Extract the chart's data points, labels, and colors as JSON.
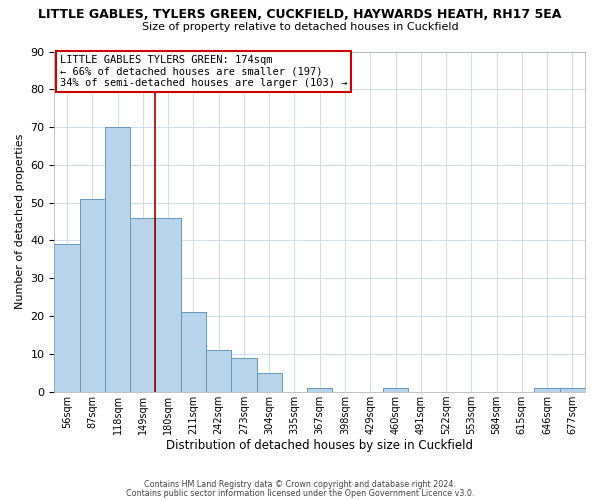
{
  "title": "LITTLE GABLES, TYLERS GREEN, CUCKFIELD, HAYWARDS HEATH, RH17 5EA",
  "subtitle": "Size of property relative to detached houses in Cuckfield",
  "xlabel": "Distribution of detached houses by size in Cuckfield",
  "ylabel": "Number of detached properties",
  "bar_color": "#b8d4ea",
  "bar_edge_color": "#6699bb",
  "background_color": "#ffffff",
  "grid_color": "#c5d8ea",
  "bin_labels": [
    "56sqm",
    "87sqm",
    "118sqm",
    "149sqm",
    "180sqm",
    "211sqm",
    "242sqm",
    "273sqm",
    "304sqm",
    "335sqm",
    "367sqm",
    "398sqm",
    "429sqm",
    "460sqm",
    "491sqm",
    "522sqm",
    "553sqm",
    "584sqm",
    "615sqm",
    "646sqm",
    "677sqm"
  ],
  "bar_heights": [
    39,
    51,
    70,
    46,
    46,
    21,
    11,
    9,
    5,
    0,
    1,
    0,
    0,
    1,
    0,
    0,
    0,
    0,
    0,
    1,
    1
  ],
  "ylim": [
    0,
    90
  ],
  "yticks": [
    0,
    10,
    20,
    30,
    40,
    50,
    60,
    70,
    80,
    90
  ],
  "vline_pos": 3.5,
  "vline_color": "#990000",
  "annotation_title": "LITTLE GABLES TYLERS GREEN: 174sqm",
  "annotation_line1": "← 66% of detached houses are smaller (197)",
  "annotation_line2": "34% of semi-detached houses are larger (103) →",
  "annotation_box_color": "#ffffff",
  "annotation_box_edge": "#cc0000",
  "footer1": "Contains HM Land Registry data © Crown copyright and database right 2024.",
  "footer2": "Contains public sector information licensed under the Open Government Licence v3.0."
}
